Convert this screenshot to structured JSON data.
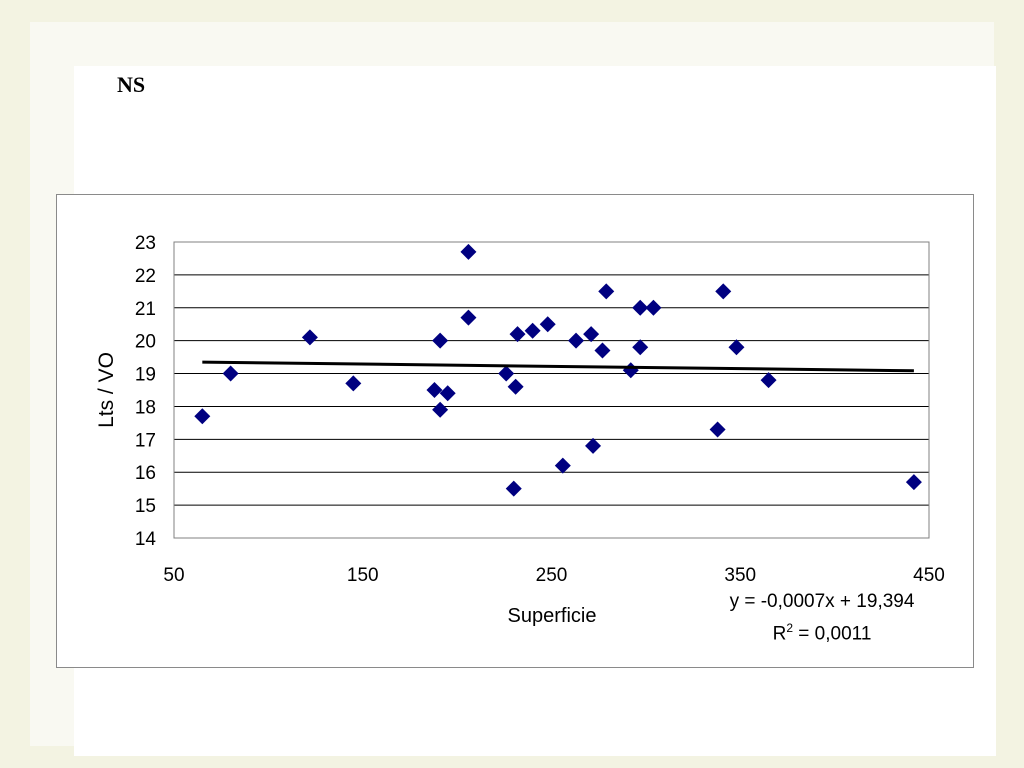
{
  "slide": {
    "title": "NS"
  },
  "chart_data": {
    "type": "scatter",
    "title": "",
    "xlabel": "Superficie",
    "ylabel": "Lts / VO",
    "xlim": [
      50,
      450
    ],
    "ylim": [
      14,
      23
    ],
    "xticks": [
      "50",
      "150",
      "250",
      "350",
      "450"
    ],
    "yticks": [
      "14",
      "15",
      "16",
      "17",
      "18",
      "19",
      "20",
      "21",
      "22",
      "23"
    ],
    "grid": "horizontal",
    "marker": "diamond",
    "colors": {
      "points": "#000080",
      "trendline": "#000000",
      "grid": "#000000"
    },
    "series": [
      {
        "points": [
          [
            65,
            17.7
          ],
          [
            80,
            19.0
          ],
          [
            122,
            20.1
          ],
          [
            145,
            18.7
          ],
          [
            188,
            18.5
          ],
          [
            191,
            20.0
          ],
          [
            191,
            17.9
          ],
          [
            195,
            18.4
          ],
          [
            206,
            22.7
          ],
          [
            206,
            20.7
          ],
          [
            226,
            19.0
          ],
          [
            230,
            15.5
          ],
          [
            231,
            18.6
          ],
          [
            232,
            20.2
          ],
          [
            240,
            20.3
          ],
          [
            248,
            20.5
          ],
          [
            256,
            16.2
          ],
          [
            263,
            20.0
          ],
          [
            271,
            20.2
          ],
          [
            272,
            16.8
          ],
          [
            277,
            19.7
          ],
          [
            279,
            21.5
          ],
          [
            292,
            19.1
          ],
          [
            297,
            21.0
          ],
          [
            297,
            19.8
          ],
          [
            304,
            21.0
          ],
          [
            338,
            17.3
          ],
          [
            341,
            21.5
          ],
          [
            348,
            19.8
          ],
          [
            365,
            18.8
          ],
          [
            442,
            15.7
          ]
        ]
      }
    ],
    "trendline": {
      "equation": "y = -0,0007x + 19,394",
      "r2_prefix": "R",
      "r2_sup": "2",
      "r2_suffix": " = 0,0011",
      "slope": -0.0007,
      "intercept": 19.394,
      "x_range": [
        65,
        442
      ]
    }
  }
}
